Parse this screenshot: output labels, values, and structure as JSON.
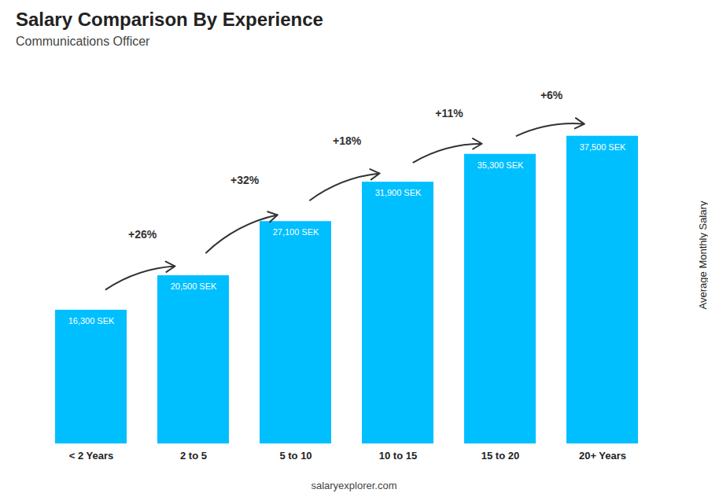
{
  "chart_data": {
    "type": "bar",
    "title": "Salary Comparison By Experience",
    "subtitle": "Communications Officer",
    "categories": [
      "< 2 Years",
      "2 to 5",
      "5 to 10",
      "10 to 15",
      "15 to 20",
      "20+ Years"
    ],
    "values": [
      16300,
      20500,
      27100,
      31900,
      35300,
      37500
    ],
    "value_labels": [
      "16,300 SEK",
      "20,500 SEK",
      "27,100 SEK",
      "31,900 SEK",
      "35,300 SEK",
      "37,500 SEK"
    ],
    "data_labels": true,
    "color": "#00BFFF",
    "ylabel": "Average Monthly Salary",
    "ylim": [
      0,
      46000
    ],
    "tick_labels": "x",
    "grid": false,
    "annotations": [
      "+26%",
      "+32%",
      "+18%",
      "+11%",
      "+6%"
    ],
    "caption": "salaryexplorer.com"
  }
}
